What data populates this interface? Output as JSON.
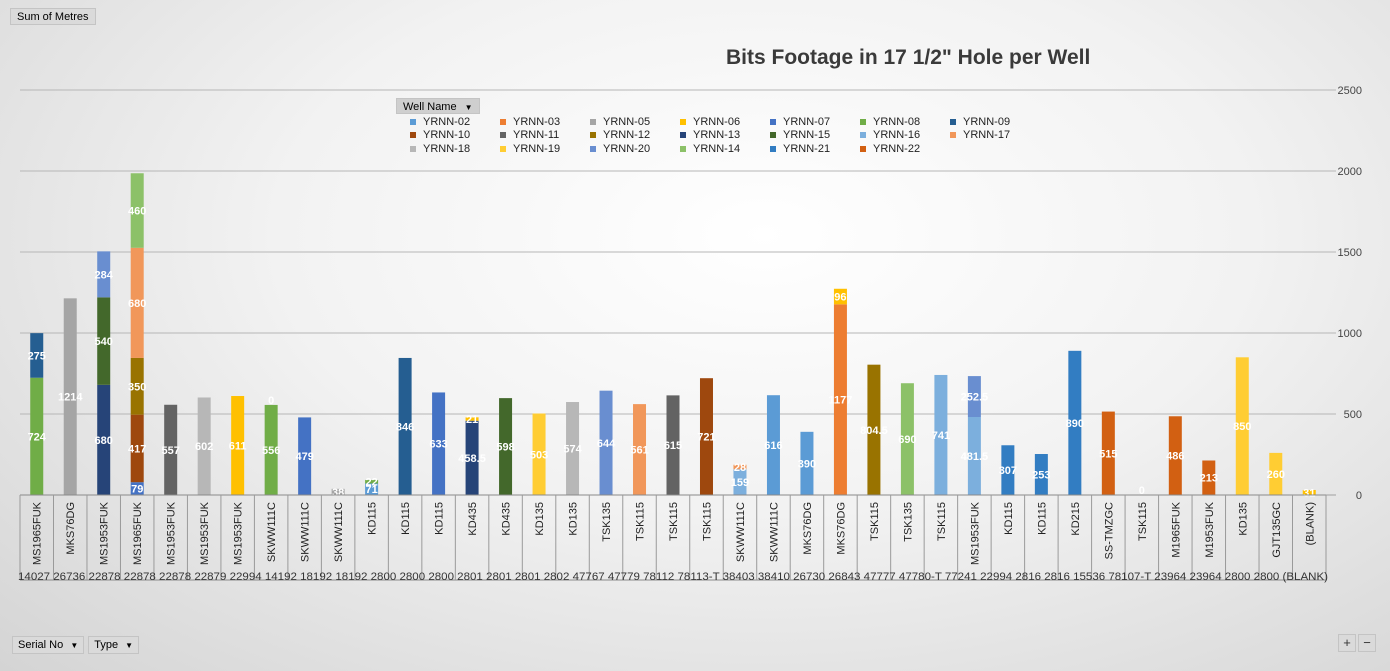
{
  "pivot": {
    "value_field": "Sum of Metres",
    "legend_field": "Well Name",
    "row_fields": [
      "Serial No",
      "Type"
    ],
    "zoom_in": "+",
    "zoom_out": "−"
  },
  "chart_data": {
    "type": "bar",
    "stacked": true,
    "title": "Bits Footage in 17 1/2\" Hole per Well",
    "xlabel": "",
    "ylabel": "",
    "ylim": [
      0,
      2500
    ],
    "yticks": [
      0,
      500,
      1000,
      1500,
      2000,
      2500
    ],
    "y_axis_side": "right",
    "grid": true,
    "legend_position": "top",
    "legend": [
      {
        "name": "YRNN-02",
        "color": "#5b9bd5"
      },
      {
        "name": "YRNN-03",
        "color": "#ed7d31"
      },
      {
        "name": "YRNN-05",
        "color": "#a5a5a5"
      },
      {
        "name": "YRNN-06",
        "color": "#ffc000"
      },
      {
        "name": "YRNN-07",
        "color": "#4472c4"
      },
      {
        "name": "YRNN-08",
        "color": "#70ad47"
      },
      {
        "name": "YRNN-09",
        "color": "#255e91"
      },
      {
        "name": "YRNN-10",
        "color": "#9e480e"
      },
      {
        "name": "YRNN-11",
        "color": "#636363"
      },
      {
        "name": "YRNN-12",
        "color": "#997300"
      },
      {
        "name": "YRNN-13",
        "color": "#264478"
      },
      {
        "name": "YRNN-15",
        "color": "#43682b"
      },
      {
        "name": "YRNN-16",
        "color": "#7cafdd"
      },
      {
        "name": "YRNN-17",
        "color": "#f1975a"
      },
      {
        "name": "YRNN-18",
        "color": "#b7b7b7"
      },
      {
        "name": "YRNN-19",
        "color": "#ffcd33"
      },
      {
        "name": "YRNN-20",
        "color": "#698ed0"
      },
      {
        "name": "YRNN-14",
        "color": "#8cc168"
      },
      {
        "name": "YRNN-21",
        "color": "#327dc2"
      },
      {
        "name": "YRNN-22",
        "color": "#d26012"
      }
    ],
    "bars": [
      {
        "type": "MS1965FUK",
        "serial": "14027",
        "segments": [
          {
            "s": "YRNN-08",
            "v": 724,
            "label": "724"
          },
          {
            "s": "YRNN-09",
            "v": 275,
            "label": "275"
          }
        ]
      },
      {
        "type": "MKS76DG",
        "serial": "26736",
        "segments": [
          {
            "s": "YRNN-05",
            "v": 1214,
            "label": "1214"
          }
        ]
      },
      {
        "type": "MS1953FUK",
        "serial": "22878",
        "segments": [
          {
            "s": "YRNN-13",
            "v": 680,
            "label": "680"
          },
          {
            "s": "YRNN-15",
            "v": 540,
            "label": "540"
          },
          {
            "s": "YRNN-20",
            "v": 284,
            "label": "284"
          }
        ]
      },
      {
        "type": "MS1965FUK",
        "serial": "22878",
        "segments": [
          {
            "s": "YRNN-07",
            "v": 79,
            "label": "79"
          },
          {
            "s": "YRNN-10",
            "v": 417,
            "label": "417"
          },
          {
            "s": "YRNN-12",
            "v": 350,
            "label": "350"
          },
          {
            "s": "YRNN-17",
            "v": 680,
            "label": "680"
          },
          {
            "s": "YRNN-14",
            "v": 460,
            "label": "460"
          }
        ]
      },
      {
        "type": "MS1953FUK",
        "serial": "22878",
        "segments": [
          {
            "s": "YRNN-11",
            "v": 557,
            "label": "557"
          }
        ]
      },
      {
        "type": "MS1953FUK",
        "serial": "22879",
        "segments": [
          {
            "s": "YRNN-18",
            "v": 602,
            "label": "602"
          }
        ]
      },
      {
        "type": "MS1953FUK",
        "serial": "22994",
        "segments": [
          {
            "s": "YRNN-06",
            "v": 611,
            "label": "611"
          }
        ]
      },
      {
        "type": "SKWW111C",
        "serial": "14192",
        "segments": [
          {
            "s": "YRNN-08",
            "v": 556,
            "label": "556"
          },
          {
            "s": "YRNN-03",
            "v": 0,
            "label": "0"
          }
        ]
      },
      {
        "type": "SKWW111C",
        "serial": "18192",
        "segments": [
          {
            "s": "YRNN-07",
            "v": 479,
            "label": "479"
          }
        ]
      },
      {
        "type": "SKWW111C",
        "serial": "18192",
        "segments": [
          {
            "s": "YRNN-05",
            "v": 38,
            "label": "38"
          }
        ]
      },
      {
        "type": "KD115",
        "serial": "2800",
        "segments": [
          {
            "s": "YRNN-02",
            "v": 71,
            "label": "71"
          },
          {
            "s": "YRNN-08",
            "v": 22,
            "label": "22"
          }
        ]
      },
      {
        "type": "KD115",
        "serial": "2800",
        "segments": [
          {
            "s": "YRNN-09",
            "v": 846,
            "label": "846"
          }
        ]
      },
      {
        "type": "KD115",
        "serial": "2800",
        "segments": [
          {
            "s": "YRNN-07",
            "v": 633,
            "label": "633"
          }
        ]
      },
      {
        "type": "KD435",
        "serial": "2801",
        "segments": [
          {
            "s": "YRNN-13",
            "v": 458.5,
            "label": "458.5"
          },
          {
            "s": "YRNN-06",
            "v": 21,
            "label": "21"
          }
        ]
      },
      {
        "type": "KD435",
        "serial": "2801",
        "segments": [
          {
            "s": "YRNN-15",
            "v": 598,
            "label": "598"
          }
        ]
      },
      {
        "type": "KD135",
        "serial": "2801",
        "segments": [
          {
            "s": "YRNN-19",
            "v": 503,
            "label": "503"
          }
        ]
      },
      {
        "type": "KD135",
        "serial": "2802",
        "segments": [
          {
            "s": "YRNN-18",
            "v": 574,
            "label": "574"
          }
        ]
      },
      {
        "type": "TSK135",
        "serial": "47767",
        "segments": [
          {
            "s": "YRNN-20",
            "v": 644,
            "label": "644"
          }
        ]
      },
      {
        "type": "TSK115",
        "serial": "47779",
        "segments": [
          {
            "s": "YRNN-17",
            "v": 561,
            "label": "561"
          }
        ]
      },
      {
        "type": "TSK115",
        "serial": "78112",
        "segments": [
          {
            "s": "YRNN-11",
            "v": 615,
            "label": "615"
          }
        ]
      },
      {
        "type": "TSK115",
        "serial": "78113-T",
        "segments": [
          {
            "s": "YRNN-10",
            "v": 721,
            "label": "721"
          }
        ]
      },
      {
        "type": "SKWW111C",
        "serial": "38403",
        "segments": [
          {
            "s": "YRNN-16",
            "v": 159,
            "label": "159"
          },
          {
            "s": "YRNN-17",
            "v": 28,
            "label": "28"
          }
        ]
      },
      {
        "type": "SKWW111C",
        "serial": "38410",
        "segments": [
          {
            "s": "YRNN-02",
            "v": 616,
            "label": "616"
          }
        ]
      },
      {
        "type": "MKS76DG",
        "serial": "26730",
        "segments": [
          {
            "s": "YRNN-02",
            "v": 390,
            "label": "390"
          }
        ]
      },
      {
        "type": "MKS76DG",
        "serial": "26843",
        "segments": [
          {
            "s": "YRNN-03",
            "v": 1177,
            "label": "1177"
          },
          {
            "s": "YRNN-06",
            "v": 96,
            "label": "96"
          }
        ]
      },
      {
        "type": "TSK115",
        "serial": "47777",
        "segments": [
          {
            "s": "YRNN-12",
            "v": 804.5,
            "label": "804.5"
          }
        ]
      },
      {
        "type": "TSK135",
        "serial": "47780-T",
        "segments": [
          {
            "s": "YRNN-14",
            "v": 690,
            "label": "690"
          }
        ]
      },
      {
        "type": "TSK115",
        "serial": "77241",
        "segments": [
          {
            "s": "YRNN-16",
            "v": 741,
            "label": "741"
          }
        ]
      },
      {
        "type": "MS1953FUK",
        "serial": "22994",
        "segments": [
          {
            "s": "YRNN-16",
            "v": 481.5,
            "label": "481.5"
          },
          {
            "s": "YRNN-20",
            "v": 252.5,
            "label": "252.5"
          }
        ]
      },
      {
        "type": "KD115",
        "serial": "2816",
        "segments": [
          {
            "s": "YRNN-21",
            "v": 307,
            "label": "307"
          }
        ]
      },
      {
        "type": "KD115",
        "serial": "2816",
        "segments": [
          {
            "s": "YRNN-21",
            "v": 253,
            "label": "253"
          }
        ]
      },
      {
        "type": "KD215",
        "serial": "15536",
        "segments": [
          {
            "s": "YRNN-21",
            "v": 890,
            "label": "890"
          }
        ]
      },
      {
        "type": "SS-TMZGC",
        "serial": "78107-T",
        "segments": [
          {
            "s": "YRNN-22",
            "v": 515,
            "label": "515"
          }
        ]
      },
      {
        "type": "TSK115",
        "serial": "",
        "segments": [
          {
            "s": "YRNN-22",
            "v": 0,
            "label": "0"
          }
        ]
      },
      {
        "type": "M1965FUK",
        "serial": "23964",
        "segments": [
          {
            "s": "YRNN-22",
            "v": 486,
            "label": "486"
          }
        ]
      },
      {
        "type": "M1953FUK",
        "serial": "23964",
        "segments": [
          {
            "s": "YRNN-22",
            "v": 213,
            "label": "213"
          }
        ]
      },
      {
        "type": "KD135",
        "serial": "2800",
        "segments": [
          {
            "s": "YRNN-19",
            "v": 850,
            "label": "850"
          }
        ]
      },
      {
        "type": "GJT135GC",
        "serial": "2800",
        "segments": [
          {
            "s": "YRNN-19",
            "v": 260,
            "label": "260"
          }
        ]
      },
      {
        "type": "(BLANK)",
        "serial": "(BLANK)",
        "segments": [
          {
            "s": "YRNN-06",
            "v": 31,
            "label": "31"
          }
        ]
      }
    ],
    "serial_row_text": "14027 26736 22878 22878 22878 22879 22994 14192 18192 18192 2800 2800 2800 2801 2801 2801 2802 47767 47779 78112 78113-T 38403 38410 26730 26843 47777 47780-T 77241 22994 2816 2816 15536 78107-T 23964 23964 2800 2800 (BLANK)"
  }
}
